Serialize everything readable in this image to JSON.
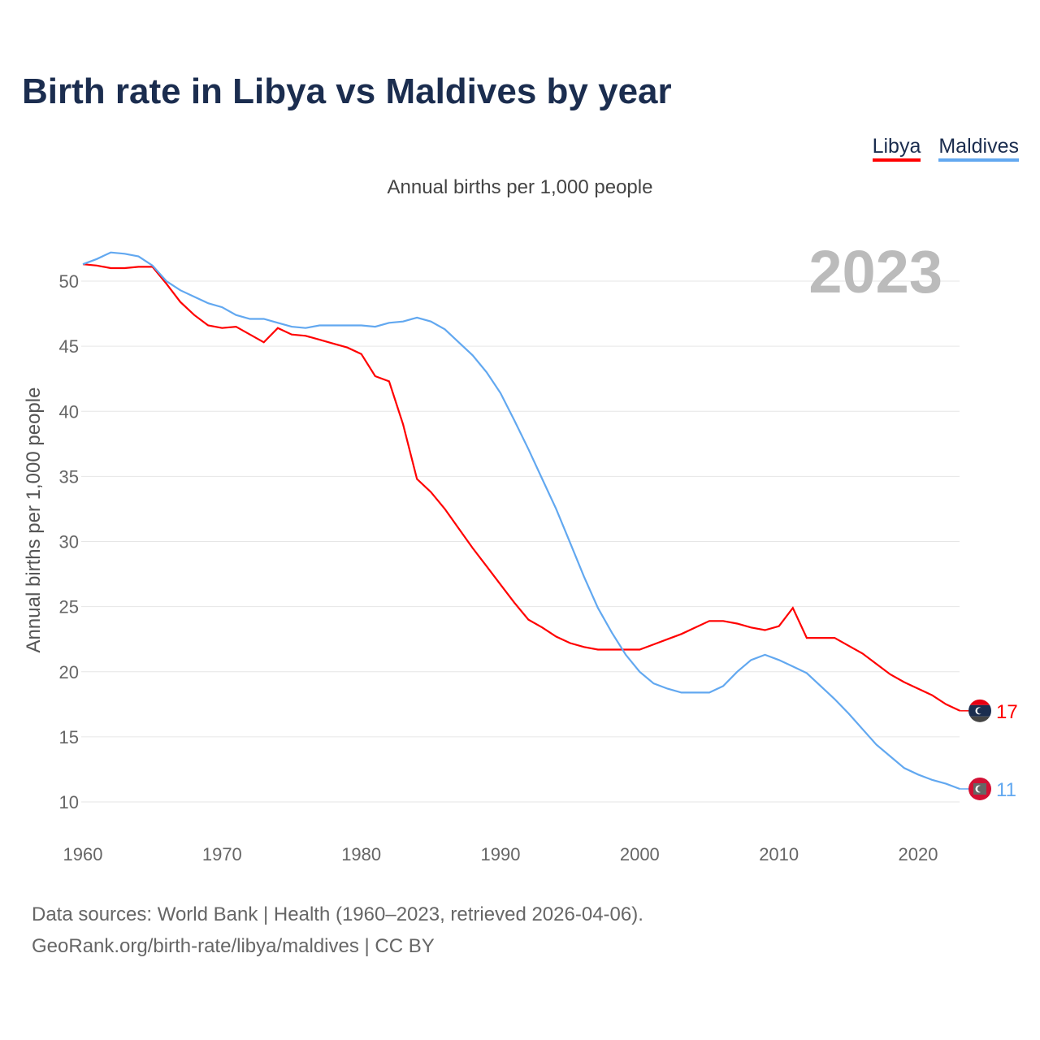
{
  "title": "Birth rate in Libya vs Maldives by year",
  "subtitle": "Annual births per 1,000 people",
  "footer": {
    "line1": "Data sources: World Bank | Health (1960–2023, retrieved 2026-04-06).",
    "line2": "GeoRank.org/birth-rate/libya/maldives | CC BY"
  },
  "chart_data": {
    "type": "line",
    "title": "Birth rate in Libya vs Maldives by year",
    "ylabel": "Annual births per 1,000 people",
    "xlabel": "",
    "year_label": "2023",
    "xlim": [
      1960,
      2023
    ],
    "ylim": [
      8,
      53
    ],
    "yticks": [
      10,
      15,
      20,
      25,
      30,
      35,
      40,
      45,
      50
    ],
    "xticks": [
      1960,
      1970,
      1980,
      1990,
      2000,
      2010,
      2020
    ],
    "grid": true,
    "legend": "top-right",
    "x": [
      1960,
      1961,
      1962,
      1963,
      1964,
      1965,
      1966,
      1967,
      1968,
      1969,
      1970,
      1971,
      1972,
      1973,
      1974,
      1975,
      1976,
      1977,
      1978,
      1979,
      1980,
      1981,
      1982,
      1983,
      1984,
      1985,
      1986,
      1987,
      1988,
      1989,
      1990,
      1991,
      1992,
      1993,
      1994,
      1995,
      1996,
      1997,
      1998,
      1999,
      2000,
      2001,
      2002,
      2003,
      2004,
      2005,
      2006,
      2007,
      2008,
      2009,
      2010,
      2011,
      2012,
      2013,
      2014,
      2015,
      2016,
      2017,
      2018,
      2019,
      2020,
      2021,
      2022,
      2023
    ],
    "series": [
      {
        "name": "Libya",
        "color": "#ff0000",
        "end_label": "17",
        "values": [
          51.3,
          51.2,
          51.0,
          51.0,
          51.1,
          51.1,
          49.8,
          48.4,
          47.4,
          46.6,
          46.4,
          46.5,
          45.9,
          45.3,
          46.4,
          45.9,
          45.8,
          45.5,
          45.2,
          44.9,
          44.4,
          42.7,
          42.3,
          39.0,
          34.8,
          33.8,
          32.5,
          31.0,
          29.5,
          28.1,
          26.7,
          25.3,
          24.0,
          23.4,
          22.7,
          22.2,
          21.9,
          21.7,
          21.7,
          21.7,
          21.7,
          22.1,
          22.5,
          22.9,
          23.4,
          23.9,
          23.9,
          23.7,
          23.4,
          23.2,
          23.5,
          24.9,
          22.6,
          22.6,
          22.6,
          22.0,
          21.4,
          20.6,
          19.8,
          19.2,
          18.7,
          18.2,
          17.5,
          17.0
        ]
      },
      {
        "name": "Maldives",
        "color": "#62a8f0",
        "end_label": "11",
        "values": [
          51.3,
          51.7,
          52.2,
          52.1,
          51.9,
          51.2,
          50.0,
          49.3,
          48.8,
          48.3,
          48.0,
          47.4,
          47.1,
          47.1,
          46.8,
          46.5,
          46.4,
          46.6,
          46.6,
          46.6,
          46.6,
          46.5,
          46.8,
          46.9,
          47.2,
          46.9,
          46.3,
          45.3,
          44.3,
          43.0,
          41.4,
          39.3,
          37.1,
          34.8,
          32.5,
          29.9,
          27.3,
          24.9,
          23.0,
          21.3,
          20.0,
          19.1,
          18.7,
          18.4,
          18.4,
          18.4,
          18.9,
          20.0,
          20.9,
          21.3,
          20.9,
          20.4,
          19.9,
          18.9,
          17.9,
          16.8,
          15.6,
          14.4,
          13.5,
          12.6,
          12.1,
          11.7,
          11.4,
          11.0
        ]
      }
    ]
  }
}
